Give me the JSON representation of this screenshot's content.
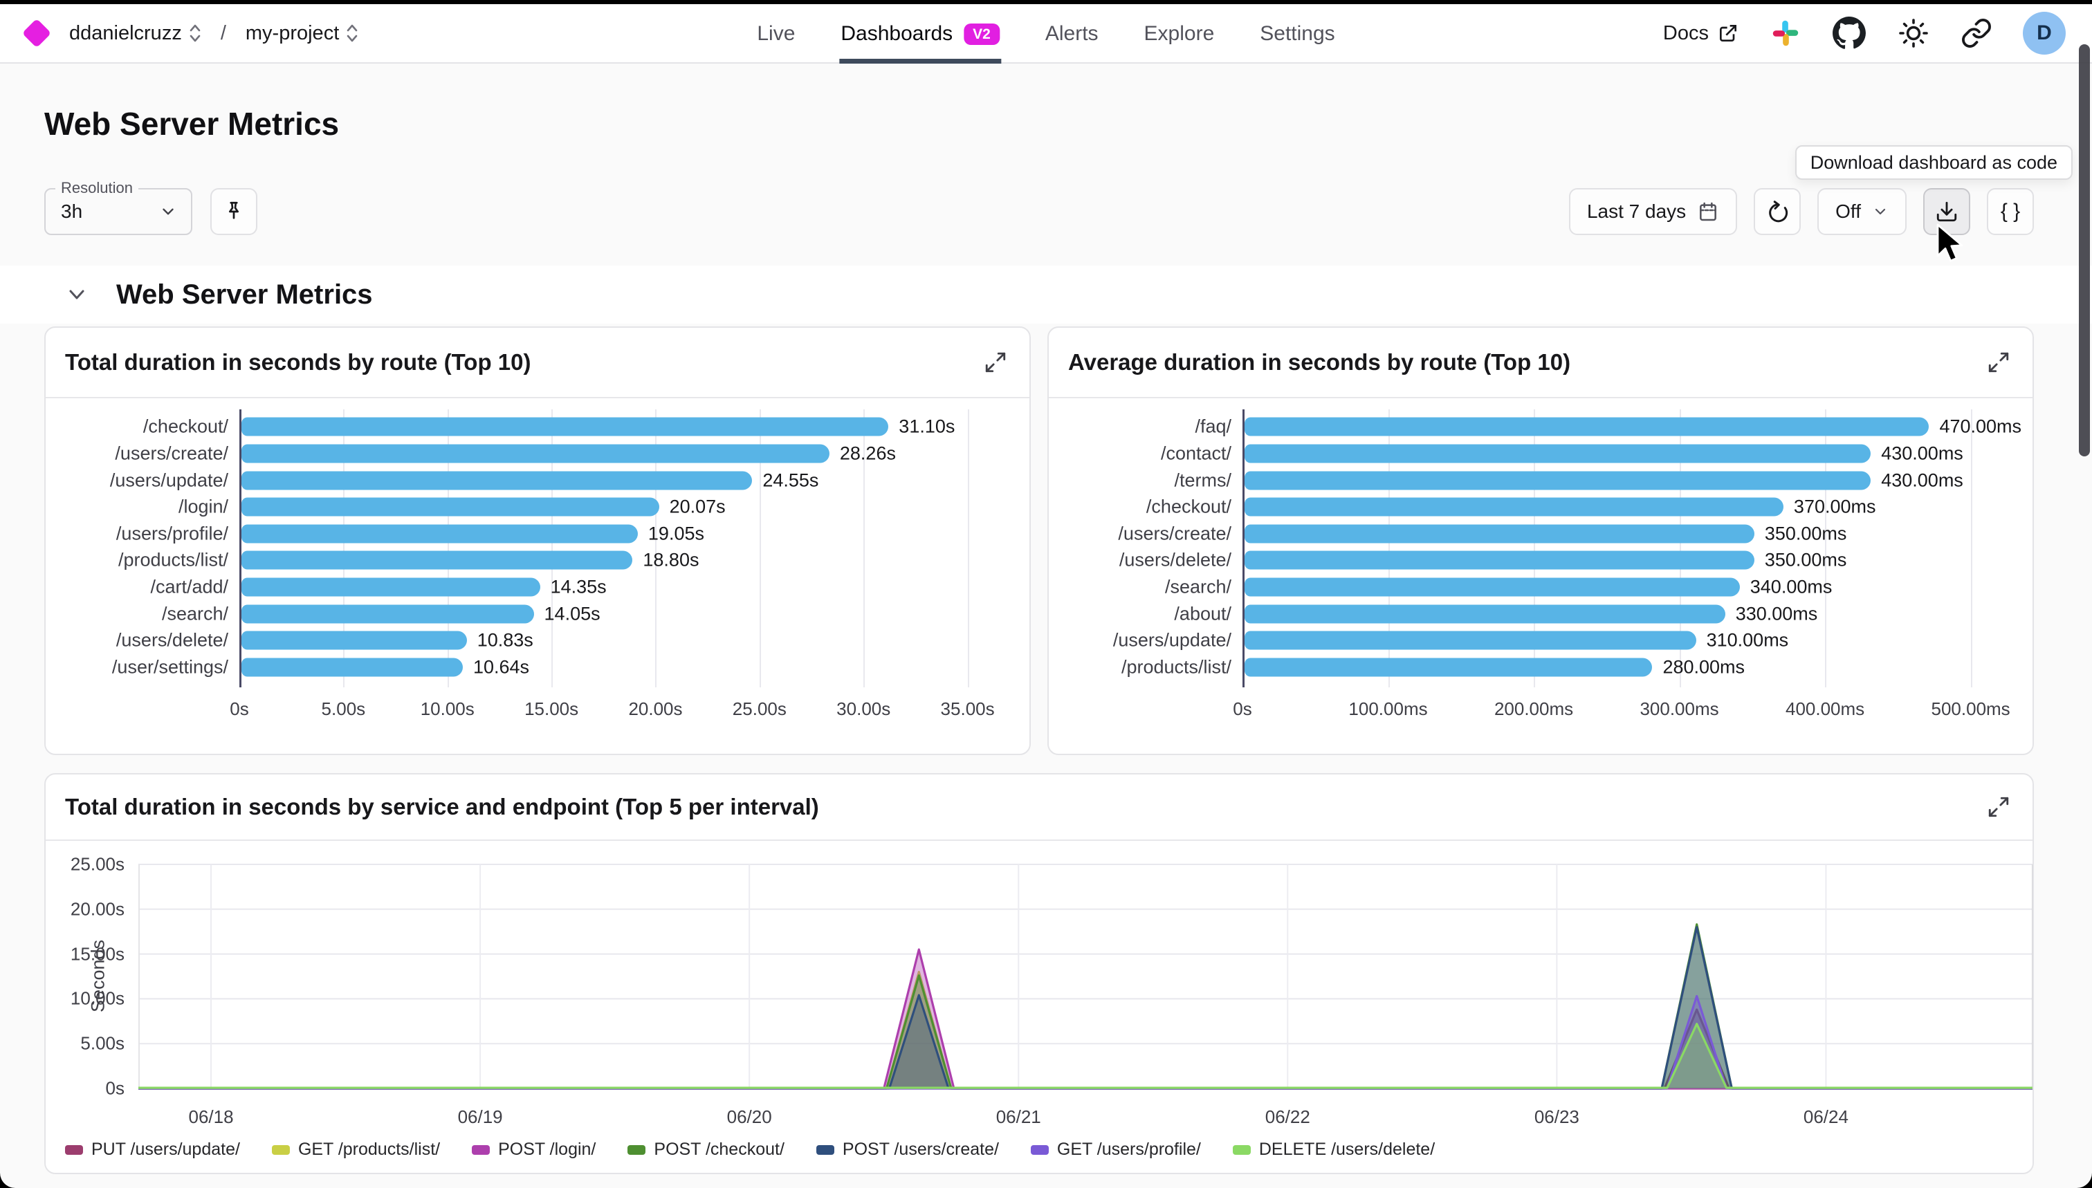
{
  "nav": {
    "org": "ddanielcruzz",
    "separator": "/",
    "project": "my-project",
    "tabs": [
      {
        "label": "Live",
        "active": false
      },
      {
        "label": "Dashboards",
        "badge": "V2",
        "active": true
      },
      {
        "label": "Alerts",
        "active": false
      },
      {
        "label": "Explore",
        "active": false
      },
      {
        "label": "Settings",
        "active": false
      }
    ],
    "docs_label": "Docs",
    "avatar_initial": "D"
  },
  "page": {
    "title": "Web Server Metrics",
    "section_title": "Web Server Metrics"
  },
  "toolbar": {
    "resolution_label": "Resolution",
    "resolution_value": "3h",
    "time_range_label": "Last 7 days",
    "auto_refresh_label": "Off",
    "code_button_label": "{ }",
    "tooltip": "Download dashboard as code"
  },
  "colors": {
    "accent_magenta": "#e11fe1",
    "bar_blue": "#58b4e6",
    "active_tab_underline": "#3e4a5c",
    "avatar_bg": "#8fc1f2"
  },
  "chart_data": [
    {
      "type": "bar",
      "orientation": "horizontal",
      "title": "Total duration in seconds by route (Top 10)",
      "categories": [
        "/checkout/",
        "/users/create/",
        "/users/update/",
        "/login/",
        "/users/profile/",
        "/products/list/",
        "/cart/add/",
        "/search/",
        "/users/delete/",
        "/user/settings/"
      ],
      "values": [
        31.1,
        28.26,
        24.55,
        20.07,
        19.05,
        18.8,
        14.35,
        14.05,
        10.83,
        10.64
      ],
      "value_labels": [
        "31.10s",
        "28.26s",
        "24.55s",
        "20.07s",
        "19.05s",
        "18.80s",
        "14.35s",
        "14.05s",
        "10.83s",
        "10.64s"
      ],
      "x_ticks": [
        "0s",
        "5.00s",
        "10.00s",
        "15.00s",
        "20.00s",
        "25.00s",
        "30.00s",
        "35.00s"
      ],
      "x_tick_values": [
        0,
        5,
        10,
        15,
        20,
        25,
        30,
        35
      ],
      "xlim": [
        0,
        35
      ],
      "bar_color": "#58b4e6",
      "grid": true
    },
    {
      "type": "bar",
      "orientation": "horizontal",
      "title": "Average duration in seconds by route (Top 10)",
      "categories": [
        "/faq/",
        "/contact/",
        "/terms/",
        "/checkout/",
        "/users/create/",
        "/users/delete/",
        "/search/",
        "/about/",
        "/users/update/",
        "/products/list/"
      ],
      "values": [
        470,
        430,
        430,
        370,
        350,
        350,
        340,
        330,
        310,
        280
      ],
      "value_labels": [
        "470.00ms",
        "430.00ms",
        "430.00ms",
        "370.00ms",
        "350.00ms",
        "350.00ms",
        "340.00ms",
        "330.00ms",
        "310.00ms",
        "280.00ms"
      ],
      "x_ticks": [
        "0s",
        "100.00ms",
        "200.00ms",
        "300.00ms",
        "400.00ms",
        "500.00ms"
      ],
      "x_tick_values": [
        0,
        100,
        200,
        300,
        400,
        500
      ],
      "xlim": [
        0,
        500
      ],
      "bar_color": "#58b4e6",
      "grid": true
    },
    {
      "type": "area",
      "title": "Total duration in seconds by service and endpoint (Top 5 per interval)",
      "ylabel": "Seconds",
      "y_ticks": [
        "0s",
        "5.00s",
        "10.00s",
        "15.00s",
        "20.00s",
        "25.00s"
      ],
      "y_tick_values": [
        0,
        5,
        10,
        15,
        20,
        25
      ],
      "ylim": [
        0,
        25
      ],
      "x_ticks": [
        "06/18",
        "06/19",
        "06/20",
        "06/21",
        "06/22",
        "06/23",
        "06/24"
      ],
      "x_tick_days": [
        0,
        1,
        2,
        3,
        4,
        5,
        6
      ],
      "x_domain": [
        -0.27,
        6.77
      ],
      "grid": true,
      "legend_position": "bottom",
      "fill_opacity": 0.38,
      "series": [
        {
          "name": "PUT /users/update/",
          "color": "#9c3d6e",
          "points": [
            [
              -0.27,
              0
            ],
            [
              5.4,
              0
            ],
            [
              5.52,
              8.8
            ],
            [
              5.64,
              0
            ],
            [
              6.77,
              0
            ]
          ]
        },
        {
          "name": "GET /products/list/",
          "color": "#c9cf45",
          "points": [
            [
              -0.27,
              0
            ],
            [
              2.51,
              0
            ],
            [
              2.63,
              13.0
            ],
            [
              2.75,
              0
            ],
            [
              6.77,
              0
            ]
          ]
        },
        {
          "name": "POST /login/",
          "color": "#ad3fad",
          "points": [
            [
              -0.27,
              0
            ],
            [
              2.5,
              0
            ],
            [
              2.63,
              15.5
            ],
            [
              2.76,
              0
            ],
            [
              6.77,
              0
            ]
          ]
        },
        {
          "name": "POST /checkout/",
          "color": "#4e8f31",
          "points": [
            [
              -0.27,
              0
            ],
            [
              2.51,
              0
            ],
            [
              2.63,
              12.6
            ],
            [
              2.75,
              0
            ],
            [
              5.39,
              0
            ],
            [
              5.52,
              18.3
            ],
            [
              5.65,
              0
            ],
            [
              6.77,
              0
            ]
          ]
        },
        {
          "name": "POST /users/create/",
          "color": "#2f4f7d",
          "points": [
            [
              -0.27,
              0
            ],
            [
              2.52,
              0
            ],
            [
              2.63,
              10.4
            ],
            [
              2.74,
              0
            ],
            [
              5.39,
              0
            ],
            [
              5.52,
              18.0
            ],
            [
              5.65,
              0
            ],
            [
              6.77,
              0
            ]
          ]
        },
        {
          "name": "GET /users/profile/",
          "color": "#7a5ad6",
          "points": [
            [
              -0.27,
              0
            ],
            [
              5.41,
              0
            ],
            [
              5.52,
              10.3
            ],
            [
              5.63,
              0
            ],
            [
              6.77,
              0
            ]
          ]
        },
        {
          "name": "DELETE /users/delete/",
          "color": "#8bd964",
          "points": [
            [
              -0.27,
              0.07
            ],
            [
              5.41,
              0.07
            ],
            [
              5.52,
              7.2
            ],
            [
              5.63,
              0.07
            ],
            [
              6.77,
              0.07
            ]
          ]
        }
      ]
    }
  ]
}
